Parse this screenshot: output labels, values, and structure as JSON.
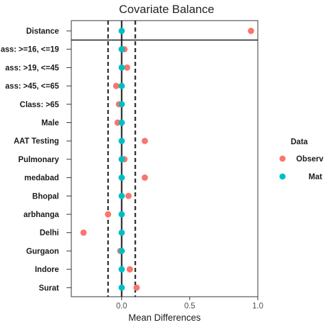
{
  "chart_data": {
    "type": "scatter",
    "title": "Covariate Balance",
    "xlabel": "Mean Differences",
    "ylabel": "",
    "xlim": [
      -0.37,
      1.0
    ],
    "xticks": [
      "0.0",
      "0.5",
      "1.0"
    ],
    "categories": [
      "Distance",
      "ass: >=16, <=19",
      "ass: >19, <=45",
      "ass: >45, <=65",
      "Class: >65",
      "Male",
      "AAT Testing",
      "Pulmonary",
      "medabad",
      "Bhopal",
      "arbhanga",
      "Delhi",
      "Gurgaon",
      "Indore",
      "Surat"
    ],
    "series": [
      {
        "name": "Observ",
        "color": "#F8766D",
        "values": [
          0.95,
          0.02,
          0.04,
          -0.04,
          -0.02,
          -0.03,
          0.17,
          0.02,
          0.17,
          0.05,
          -0.1,
          -0.28,
          -0.01,
          0.06,
          0.11
        ]
      },
      {
        "name": "Mat",
        "color": "#00BFC4",
        "values": [
          0.0,
          0.0,
          0.0,
          0.0,
          0.0,
          0.0,
          0.0,
          0.0,
          0.0,
          0.0,
          0.0,
          0.0,
          0.0,
          0.0,
          0.0
        ]
      }
    ],
    "threshold_lines": [
      -0.1,
      0.1
    ],
    "zero_line": 0,
    "legend": {
      "title": "Data",
      "position": "right"
    },
    "grid": false
  }
}
